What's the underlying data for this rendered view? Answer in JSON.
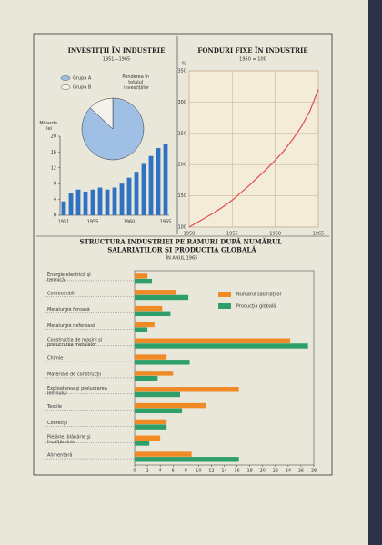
{
  "chart_data": [
    {
      "type": "bar",
      "title": "INVESTIŢII ÎN INDUSTRIE",
      "subtitle": "1951—1965",
      "y_label": "Miliarde lei",
      "categories": [
        "1951",
        null,
        null,
        null,
        "1955",
        null,
        null,
        null,
        null,
        "1960",
        null,
        null,
        null,
        null,
        "1965"
      ],
      "values": [
        3.5,
        5.5,
        6.5,
        6,
        6.5,
        7,
        6.5,
        7,
        8,
        9.5,
        11,
        13,
        15,
        17,
        18
      ],
      "color": "#2f72c4",
      "ylim": [
        0,
        20
      ],
      "yticks": [
        0,
        4,
        8,
        12,
        16,
        20
      ]
    },
    {
      "type": "pie",
      "title": "Ponderea în totalul investiţiilor",
      "categories": [
        "Grupa A",
        "Grupa B"
      ],
      "values": [
        87,
        13
      ],
      "colors": [
        "#9fc0e4",
        "#f4f2ea"
      ]
    },
    {
      "type": "line",
      "title": "FONDURI FIXE ÎN INDUSTRIE",
      "subtitle": "1950 = 100",
      "y_label": "%",
      "x": [
        1950,
        1951,
        1952,
        1953,
        1954,
        1955,
        1956,
        1957,
        1958,
        1959,
        1960,
        1961,
        1962,
        1963,
        1964,
        1965
      ],
      "values": [
        100,
        108,
        116,
        124,
        133,
        143,
        155,
        167,
        180,
        193,
        207,
        222,
        240,
        260,
        285,
        320
      ],
      "color": "#e04b4b",
      "xlim": [
        1950,
        1965
      ],
      "xticks": [
        1950,
        1955,
        1960,
        1965
      ],
      "ylim": [
        100,
        350
      ],
      "yticks": [
        100,
        150,
        200,
        250,
        300,
        350
      ],
      "grid": true
    },
    {
      "type": "barh",
      "title": "STRUCTURA INDUSTRIEI PE RAMURI DUPĂ NUMĂRUL SALARIAŢILOR ŞI PRODUCŢIA GLOBALĂ",
      "subtitle": "ÎN ANUL 1965",
      "categories": [
        "Energie electrică şi termică",
        "Combustibil",
        "Metalurgie feroasă",
        "Metalurgie neferoasă",
        "Construcţia de maşini şi prelucrarea metalelor",
        "Chimie",
        "Materiale de construcţii",
        "Exploatarea şi prelucrarea lemnului",
        "Textile",
        "Confecţii",
        "Pielărie, blănărie şi încălţăminte",
        "Alimentară"
      ],
      "series": [
        {
          "name": "Numărul salariaţilor",
          "color": "#f08a24",
          "values": [
            2,
            6.4,
            4.3,
            3.1,
            24.3,
            5,
            6,
            16.3,
            11.1,
            5,
            4,
            8.9
          ]
        },
        {
          "name": "Producţia globală",
          "color": "#2e9e6a",
          "values": [
            2.7,
            8.4,
            5.6,
            2,
            27.1,
            8.6,
            3.6,
            7.1,
            7.4,
            5,
            2.3,
            16.3
          ]
        }
      ],
      "xlim": [
        0,
        28
      ],
      "xticks": [
        0,
        2,
        4,
        6,
        8,
        10,
        12,
        14,
        16,
        18,
        20,
        22,
        24,
        26,
        28
      ]
    }
  ]
}
